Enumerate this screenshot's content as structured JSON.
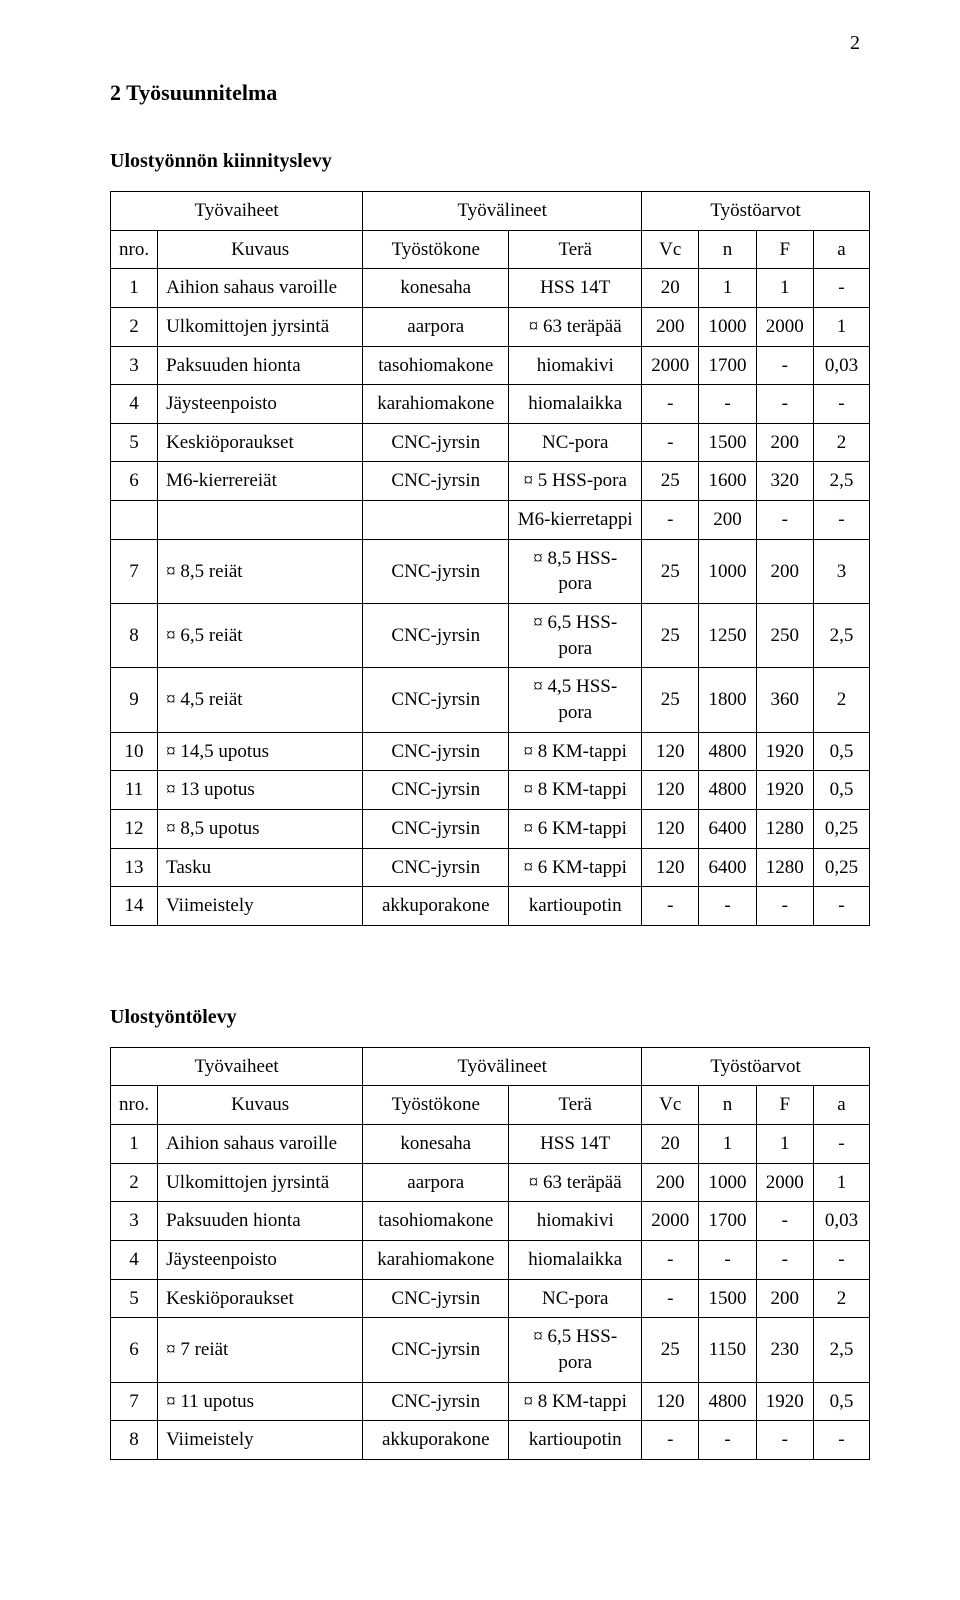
{
  "page_number": "2",
  "main_heading": "2 Työsuunnitelma",
  "section1": {
    "title": "Ulostyönnön kiinnityslevy",
    "header_groups": {
      "g1": "Työvaiheet",
      "g2": "Työvälineet",
      "g3": "Työstöarvot"
    },
    "columns": {
      "nro": "nro.",
      "kuvaus": "Kuvaus",
      "tyostokone": "Työstökone",
      "tera": "Terä",
      "vc": "Vc",
      "n": "n",
      "f": "F",
      "a": "a"
    },
    "rows": [
      {
        "nro": "1",
        "kuvaus": "Aihion sahaus varoille",
        "tyostokone": "konesaha",
        "tera": "HSS 14T",
        "vc": "20",
        "n": "1",
        "f": "1",
        "a": "-"
      },
      {
        "nro": "2",
        "kuvaus": "Ulkomittojen jyrsintä",
        "tyostokone": "aarpora",
        "tera": "¤ 63 teräpää",
        "vc": "200",
        "n": "1000",
        "f": "2000",
        "a": "1"
      },
      {
        "nro": "3",
        "kuvaus": "Paksuuden hionta",
        "tyostokone": "tasohiomakone",
        "tera": "hiomakivi",
        "vc": "2000",
        "n": "1700",
        "f": "-",
        "a": "0,03"
      },
      {
        "nro": "4",
        "kuvaus": "Jäysteenpoisto",
        "tyostokone": "karahiomakone",
        "tera": "hiomalaikka",
        "vc": "-",
        "n": "-",
        "f": "-",
        "a": "-"
      },
      {
        "nro": "5",
        "kuvaus": "Keskiöporaukset",
        "tyostokone": "CNC-jyrsin",
        "tera": "NC-pora",
        "vc": "-",
        "n": "1500",
        "f": "200",
        "a": "2"
      },
      {
        "nro": "6",
        "kuvaus": "M6-kierrereiät",
        "tyostokone": "CNC-jyrsin",
        "tera": "¤ 5 HSS-pora",
        "vc": "25",
        "n": "1600",
        "f": "320",
        "a": "2,5"
      },
      {
        "nro": "",
        "kuvaus": "",
        "tyostokone": "",
        "tera": "M6-kierretappi",
        "vc": "-",
        "n": "200",
        "f": "-",
        "a": "-"
      },
      {
        "nro": "7",
        "kuvaus": "¤ 8,5 reiät",
        "tyostokone": "CNC-jyrsin",
        "tera": "¤ 8,5 HSS-pora",
        "vc": "25",
        "n": "1000",
        "f": "200",
        "a": "3"
      },
      {
        "nro": "8",
        "kuvaus": "¤ 6,5 reiät",
        "tyostokone": "CNC-jyrsin",
        "tera": "¤ 6,5 HSS-pora",
        "vc": "25",
        "n": "1250",
        "f": "250",
        "a": "2,5"
      },
      {
        "nro": "9",
        "kuvaus": "¤ 4,5 reiät",
        "tyostokone": "CNC-jyrsin",
        "tera": "¤ 4,5 HSS-pora",
        "vc": "25",
        "n": "1800",
        "f": "360",
        "a": "2"
      },
      {
        "nro": "10",
        "kuvaus": "¤ 14,5 upotus",
        "tyostokone": "CNC-jyrsin",
        "tera": "¤ 8 KM-tappi",
        "vc": "120",
        "n": "4800",
        "f": "1920",
        "a": "0,5"
      },
      {
        "nro": "11",
        "kuvaus": "¤ 13 upotus",
        "tyostokone": "CNC-jyrsin",
        "tera": "¤ 8 KM-tappi",
        "vc": "120",
        "n": "4800",
        "f": "1920",
        "a": "0,5"
      },
      {
        "nro": "12",
        "kuvaus": "¤ 8,5 upotus",
        "tyostokone": "CNC-jyrsin",
        "tera": "¤ 6 KM-tappi",
        "vc": "120",
        "n": "6400",
        "f": "1280",
        "a": "0,25"
      },
      {
        "nro": "13",
        "kuvaus": "Tasku",
        "tyostokone": "CNC-jyrsin",
        "tera": "¤ 6 KM-tappi",
        "vc": "120",
        "n": "6400",
        "f": "1280",
        "a": "0,25"
      },
      {
        "nro": "14",
        "kuvaus": "Viimeistely",
        "tyostokone": "akkuporakone",
        "tera": "kartioupotin",
        "vc": "-",
        "n": "-",
        "f": "-",
        "a": "-"
      }
    ]
  },
  "section2": {
    "title": "Ulostyöntölevy",
    "header_groups": {
      "g1": "Työvaiheet",
      "g2": "Työvälineet",
      "g3": "Työstöarvot"
    },
    "columns": {
      "nro": "nro.",
      "kuvaus": "Kuvaus",
      "tyostokone": "Työstökone",
      "tera": "Terä",
      "vc": "Vc",
      "n": "n",
      "f": "F",
      "a": "a"
    },
    "rows": [
      {
        "nro": "1",
        "kuvaus": "Aihion sahaus varoille",
        "tyostokone": "konesaha",
        "tera": "HSS 14T",
        "vc": "20",
        "n": "1",
        "f": "1",
        "a": "-"
      },
      {
        "nro": "2",
        "kuvaus": "Ulkomittojen jyrsintä",
        "tyostokone": "aarpora",
        "tera": "¤ 63 teräpää",
        "vc": "200",
        "n": "1000",
        "f": "2000",
        "a": "1"
      },
      {
        "nro": "3",
        "kuvaus": "Paksuuden hionta",
        "tyostokone": "tasohiomakone",
        "tera": "hiomakivi",
        "vc": "2000",
        "n": "1700",
        "f": "-",
        "a": "0,03"
      },
      {
        "nro": "4",
        "kuvaus": "Jäysteenpoisto",
        "tyostokone": "karahiomakone",
        "tera": "hiomalaikka",
        "vc": "-",
        "n": "-",
        "f": "-",
        "a": "-"
      },
      {
        "nro": "5",
        "kuvaus": "Keskiöporaukset",
        "tyostokone": "CNC-jyrsin",
        "tera": "NC-pora",
        "vc": "-",
        "n": "1500",
        "f": "200",
        "a": "2"
      },
      {
        "nro": "6",
        "kuvaus": "¤ 7 reiät",
        "tyostokone": "CNC-jyrsin",
        "tera": "¤ 6,5 HSS-pora",
        "vc": "25",
        "n": "1150",
        "f": "230",
        "a": "2,5"
      },
      {
        "nro": "7",
        "kuvaus": "¤ 11 upotus",
        "tyostokone": "CNC-jyrsin",
        "tera": "¤ 8 KM-tappi",
        "vc": "120",
        "n": "4800",
        "f": "1920",
        "a": "0,5"
      },
      {
        "nro": "8",
        "kuvaus": "Viimeistely",
        "tyostokone": "akkuporakone",
        "tera": "kartioupotin",
        "vc": "-",
        "n": "-",
        "f": "-",
        "a": "-"
      }
    ]
  }
}
